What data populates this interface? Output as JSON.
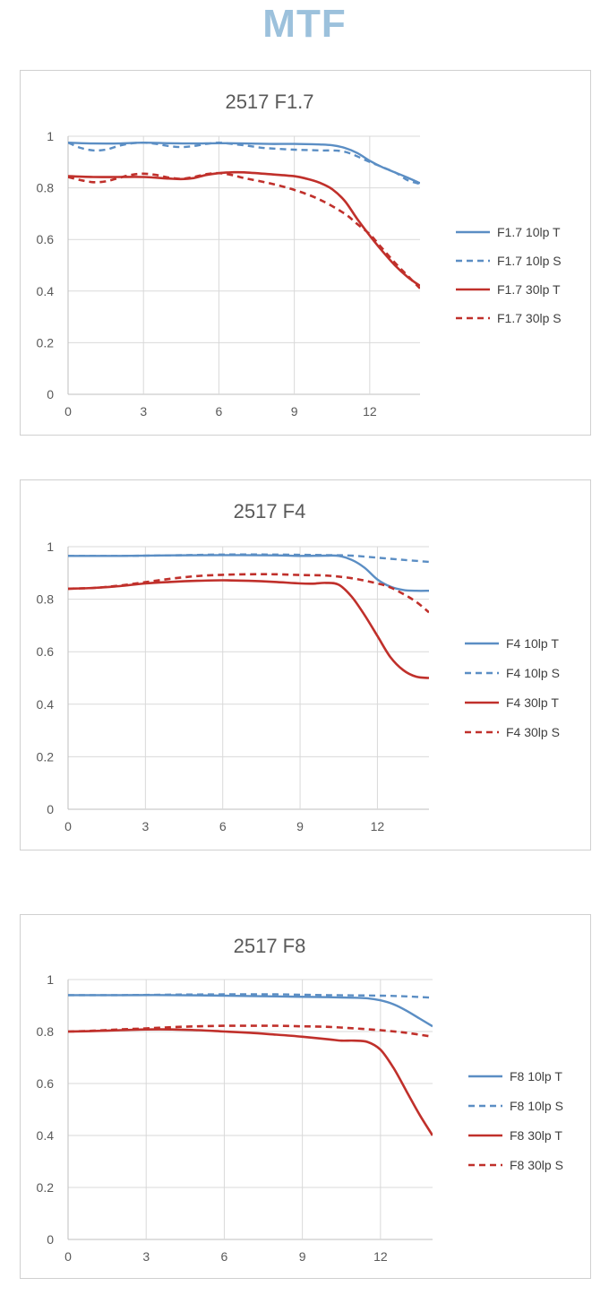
{
  "page": {
    "title": "MTF"
  },
  "colors": {
    "title": "#9cc1dc",
    "blue": "#5b8ec4",
    "red": "#c0302b"
  },
  "chart_data": [
    {
      "type": "line",
      "title": "2517   F1.7",
      "xlabel": "",
      "ylabel": "",
      "xlim": [
        0,
        14
      ],
      "ylim": [
        0,
        1
      ],
      "xticks": [
        "0",
        "3",
        "6",
        "9",
        "12"
      ],
      "yticks": [
        "0",
        "0.2",
        "0.4",
        "0.6",
        "0.8",
        "1"
      ],
      "legend_position": "right",
      "grid": true,
      "series": [
        {
          "name": "F1.7 10lp T",
          "color": "#5b8ec4",
          "dash": false,
          "x": [
            0,
            1,
            2,
            3,
            4,
            5,
            6,
            7,
            8,
            9,
            10,
            10.5,
            11,
            11.5,
            12,
            12.5,
            13,
            13.5,
            14
          ],
          "y": [
            0.975,
            0.972,
            0.972,
            0.975,
            0.973,
            0.972,
            0.973,
            0.972,
            0.97,
            0.97,
            0.968,
            0.965,
            0.955,
            0.935,
            0.905,
            0.88,
            0.86,
            0.84,
            0.818
          ]
        },
        {
          "name": "F1.7 10lp S",
          "color": "#5b8ec4",
          "dash": true,
          "x": [
            0,
            0.5,
            1,
            1.5,
            2,
            2.5,
            3,
            3.5,
            4,
            4.5,
            5,
            5.5,
            6,
            6.5,
            7,
            7.5,
            8,
            9,
            10,
            11,
            12,
            13,
            13.5,
            14
          ],
          "y": [
            0.975,
            0.955,
            0.945,
            0.948,
            0.962,
            0.972,
            0.975,
            0.97,
            0.962,
            0.958,
            0.962,
            0.97,
            0.975,
            0.97,
            0.965,
            0.958,
            0.953,
            0.948,
            0.945,
            0.94,
            0.9,
            0.86,
            0.83,
            0.815
          ]
        },
        {
          "name": "F1.7 30lp T",
          "color": "#c0302b",
          "dash": false,
          "x": [
            0,
            1,
            2,
            3,
            4,
            4.5,
            5,
            5.5,
            6,
            6.5,
            7,
            8,
            9,
            9.5,
            10,
            10.5,
            11,
            11.5,
            12,
            12.5,
            13,
            13.5,
            14
          ],
          "y": [
            0.845,
            0.842,
            0.842,
            0.842,
            0.836,
            0.834,
            0.838,
            0.85,
            0.857,
            0.86,
            0.86,
            0.853,
            0.845,
            0.835,
            0.82,
            0.795,
            0.75,
            0.68,
            0.615,
            0.555,
            0.5,
            0.455,
            0.42
          ]
        },
        {
          "name": "F1.7 30lp S",
          "color": "#c0302b",
          "dash": true,
          "x": [
            0,
            0.5,
            1,
            1.5,
            2,
            2.5,
            3,
            3.5,
            4,
            4.5,
            5,
            5.5,
            6,
            6.5,
            7,
            8,
            9,
            10,
            11,
            11.5,
            12,
            12.5,
            13,
            13.5,
            14
          ],
          "y": [
            0.842,
            0.83,
            0.822,
            0.825,
            0.838,
            0.85,
            0.855,
            0.85,
            0.84,
            0.835,
            0.842,
            0.853,
            0.857,
            0.85,
            0.838,
            0.818,
            0.792,
            0.755,
            0.7,
            0.66,
            0.62,
            0.565,
            0.51,
            0.46,
            0.41
          ]
        }
      ]
    },
    {
      "type": "line",
      "title": "2517   F4",
      "xlabel": "",
      "ylabel": "",
      "xlim": [
        0,
        14
      ],
      "ylim": [
        0,
        1
      ],
      "xticks": [
        "0",
        "3",
        "6",
        "9",
        "12"
      ],
      "yticks": [
        "0",
        "0.2",
        "0.4",
        "0.6",
        "0.8",
        "1"
      ],
      "legend_position": "right",
      "grid": true,
      "series": [
        {
          "name": "F4 10lp T",
          "color": "#5b8ec4",
          "dash": false,
          "x": [
            0,
            2,
            4,
            6,
            8,
            9,
            10,
            10.5,
            11,
            11.5,
            12,
            12.5,
            13,
            13.5,
            14
          ],
          "y": [
            0.965,
            0.965,
            0.967,
            0.968,
            0.967,
            0.965,
            0.966,
            0.965,
            0.95,
            0.92,
            0.875,
            0.848,
            0.835,
            0.832,
            0.832
          ]
        },
        {
          "name": "F4 10lp S",
          "color": "#5b8ec4",
          "dash": true,
          "x": [
            0,
            2,
            4,
            6,
            8,
            10,
            11,
            12,
            13,
            14
          ],
          "y": [
            0.965,
            0.965,
            0.967,
            0.97,
            0.97,
            0.968,
            0.966,
            0.958,
            0.95,
            0.942
          ]
        },
        {
          "name": "F4 30lp T",
          "color": "#c0302b",
          "dash": false,
          "x": [
            0,
            1,
            2,
            3,
            4,
            5,
            6,
            7,
            8,
            9,
            9.5,
            10,
            10.5,
            11,
            11.5,
            12,
            12.5,
            13,
            13.5,
            14
          ],
          "y": [
            0.84,
            0.843,
            0.85,
            0.86,
            0.866,
            0.87,
            0.872,
            0.87,
            0.866,
            0.86,
            0.859,
            0.862,
            0.855,
            0.81,
            0.74,
            0.66,
            0.58,
            0.53,
            0.505,
            0.5
          ]
        },
        {
          "name": "F4 30lp S",
          "color": "#c0302b",
          "dash": true,
          "x": [
            0,
            1,
            2,
            3,
            4,
            5,
            6,
            7,
            8,
            9,
            10,
            11,
            12,
            12.5,
            13,
            13.5,
            14
          ],
          "y": [
            0.84,
            0.843,
            0.852,
            0.865,
            0.878,
            0.888,
            0.893,
            0.895,
            0.895,
            0.892,
            0.89,
            0.88,
            0.86,
            0.845,
            0.82,
            0.79,
            0.75
          ]
        }
      ]
    },
    {
      "type": "line",
      "title": "2517   F8",
      "xlabel": "",
      "ylabel": "",
      "xlim": [
        0,
        14
      ],
      "ylim": [
        0,
        1
      ],
      "xticks": [
        "0",
        "3",
        "6",
        "9",
        "12"
      ],
      "yticks": [
        "0",
        "0.2",
        "0.4",
        "0.6",
        "0.8",
        "1"
      ],
      "legend_position": "right",
      "grid": true,
      "series": [
        {
          "name": "F8 10lp T",
          "color": "#5b8ec4",
          "dash": false,
          "x": [
            0,
            2,
            4,
            6,
            8,
            10,
            11,
            11.5,
            12,
            12.5,
            13,
            13.5,
            14
          ],
          "y": [
            0.94,
            0.94,
            0.94,
            0.938,
            0.935,
            0.932,
            0.93,
            0.928,
            0.92,
            0.905,
            0.88,
            0.85,
            0.82
          ]
        },
        {
          "name": "F8 10lp S",
          "color": "#5b8ec4",
          "dash": true,
          "x": [
            0,
            2,
            4,
            6,
            8,
            10,
            12,
            13,
            14
          ],
          "y": [
            0.94,
            0.94,
            0.942,
            0.943,
            0.943,
            0.94,
            0.938,
            0.935,
            0.93
          ]
        },
        {
          "name": "F8 30lp T",
          "color": "#c0302b",
          "dash": false,
          "x": [
            0,
            1,
            2,
            3,
            4,
            5,
            6,
            7,
            8,
            9,
            10,
            10.5,
            11,
            11.5,
            12,
            12.5,
            13,
            13.5,
            14
          ],
          "y": [
            0.8,
            0.802,
            0.805,
            0.808,
            0.808,
            0.805,
            0.8,
            0.795,
            0.788,
            0.78,
            0.77,
            0.765,
            0.765,
            0.76,
            0.73,
            0.66,
            0.57,
            0.48,
            0.4
          ]
        },
        {
          "name": "F8 30lp S",
          "color": "#c0302b",
          "dash": true,
          "x": [
            0,
            1,
            2,
            3,
            4,
            5,
            6,
            7,
            8,
            9,
            10,
            11,
            12,
            13,
            14
          ],
          "y": [
            0.8,
            0.803,
            0.808,
            0.812,
            0.817,
            0.82,
            0.822,
            0.822,
            0.822,
            0.82,
            0.818,
            0.812,
            0.805,
            0.795,
            0.78
          ]
        }
      ]
    }
  ]
}
